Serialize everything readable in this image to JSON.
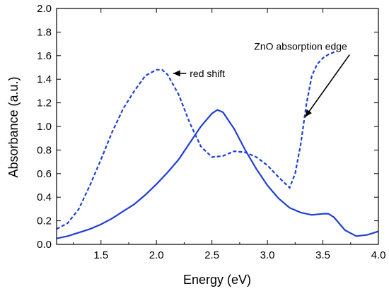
{
  "chart_data": {
    "type": "line",
    "title": "",
    "xlabel": "Energy (eV)",
    "ylabel": "Absorbance (a.u.)",
    "xlim": [
      1.1,
      4.0
    ],
    "ylim": [
      0.0,
      2.0
    ],
    "xticks": [
      "1.5",
      "2.0",
      "2.5",
      "3.0",
      "3.5",
      "4.0"
    ],
    "yticks": [
      "0.0",
      "0.2",
      "0.4",
      "0.6",
      "0.8",
      "1.0",
      "1.2",
      "1.4",
      "1.6",
      "1.8",
      "2.0"
    ],
    "grid": false,
    "series": [
      {
        "style": "solid",
        "color": "#1f3fd6",
        "x": [
          1.1,
          1.2,
          1.3,
          1.4,
          1.5,
          1.6,
          1.7,
          1.8,
          1.9,
          2.0,
          2.1,
          2.2,
          2.3,
          2.4,
          2.5,
          2.55,
          2.6,
          2.7,
          2.8,
          2.9,
          3.0,
          3.1,
          3.2,
          3.3,
          3.4,
          3.5,
          3.55,
          3.6,
          3.7,
          3.8,
          3.9,
          4.0
        ],
        "y": [
          0.05,
          0.07,
          0.1,
          0.13,
          0.17,
          0.22,
          0.28,
          0.34,
          0.42,
          0.51,
          0.61,
          0.72,
          0.86,
          1.0,
          1.11,
          1.14,
          1.12,
          0.98,
          0.8,
          0.64,
          0.5,
          0.39,
          0.31,
          0.27,
          0.25,
          0.26,
          0.26,
          0.23,
          0.12,
          0.07,
          0.08,
          0.11
        ]
      },
      {
        "style": "dashed",
        "color": "#1f3fd6",
        "x": [
          1.1,
          1.2,
          1.3,
          1.4,
          1.5,
          1.6,
          1.7,
          1.8,
          1.9,
          2.0,
          2.05,
          2.1,
          2.2,
          2.3,
          2.4,
          2.5,
          2.6,
          2.7,
          2.8,
          2.9,
          3.0,
          3.1,
          3.2,
          3.25,
          3.3,
          3.35,
          3.4,
          3.45,
          3.5,
          3.55,
          3.6,
          3.63
        ],
        "y": [
          0.13,
          0.18,
          0.3,
          0.5,
          0.72,
          0.95,
          1.15,
          1.3,
          1.43,
          1.48,
          1.48,
          1.44,
          1.27,
          1.03,
          0.83,
          0.74,
          0.75,
          0.79,
          0.78,
          0.74,
          0.67,
          0.57,
          0.48,
          0.6,
          0.85,
          1.18,
          1.43,
          1.53,
          1.58,
          1.61,
          1.63,
          1.64
        ]
      }
    ],
    "annotations": [
      {
        "text": "ZnO absorption edge",
        "at": [
          2.88,
          1.65
        ],
        "arrow_to": [
          3.34,
          1.08
        ]
      },
      {
        "text": "red shift",
        "at": [
          2.3,
          1.42
        ],
        "arrow_to": [
          2.15,
          1.42
        ]
      }
    ]
  }
}
